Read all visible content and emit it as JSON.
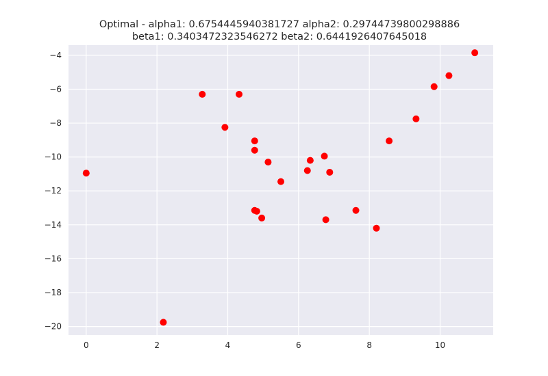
{
  "chart_data": {
    "type": "scatter",
    "title_lines": [
      "Optimal - alpha1: 0.6754445940381727 alpha2: 0.29744739800298886",
      "beta1: 0.3403472323546272 beta2: 0.6441926407645018"
    ],
    "xlabel": "",
    "ylabel": "",
    "xlim": [
      -0.5,
      11.5
    ],
    "ylim": [
      -20.5,
      -3.4
    ],
    "x_ticks": [
      0,
      2,
      4,
      6,
      8,
      10
    ],
    "y_ticks": [
      -20,
      -18,
      -16,
      -14,
      -12,
      -10,
      -8,
      -6,
      -4
    ],
    "grid": true,
    "background_color": "#eaeaf2",
    "grid_color": "#ffffff",
    "marker_color": "#ff0000",
    "points": [
      {
        "x": 0.0,
        "y": -10.95
      },
      {
        "x": 2.18,
        "y": -19.75
      },
      {
        "x": 3.28,
        "y": -6.3
      },
      {
        "x": 3.92,
        "y": -8.25
      },
      {
        "x": 4.32,
        "y": -6.3
      },
      {
        "x": 4.76,
        "y": -9.05
      },
      {
        "x": 4.76,
        "y": -9.6
      },
      {
        "x": 4.76,
        "y": -13.15
      },
      {
        "x": 4.82,
        "y": -13.2
      },
      {
        "x": 4.96,
        "y": -13.6
      },
      {
        "x": 5.14,
        "y": -10.3
      },
      {
        "x": 5.5,
        "y": -11.45
      },
      {
        "x": 6.25,
        "y": -10.8
      },
      {
        "x": 6.33,
        "y": -10.2
      },
      {
        "x": 6.73,
        "y": -9.95
      },
      {
        "x": 6.77,
        "y": -13.7
      },
      {
        "x": 6.88,
        "y": -10.9
      },
      {
        "x": 7.62,
        "y": -13.15
      },
      {
        "x": 8.2,
        "y": -14.2
      },
      {
        "x": 8.56,
        "y": -9.05
      },
      {
        "x": 9.32,
        "y": -7.75
      },
      {
        "x": 9.83,
        "y": -5.85
      },
      {
        "x": 10.25,
        "y": -5.2
      },
      {
        "x": 10.98,
        "y": -3.85
      }
    ]
  }
}
